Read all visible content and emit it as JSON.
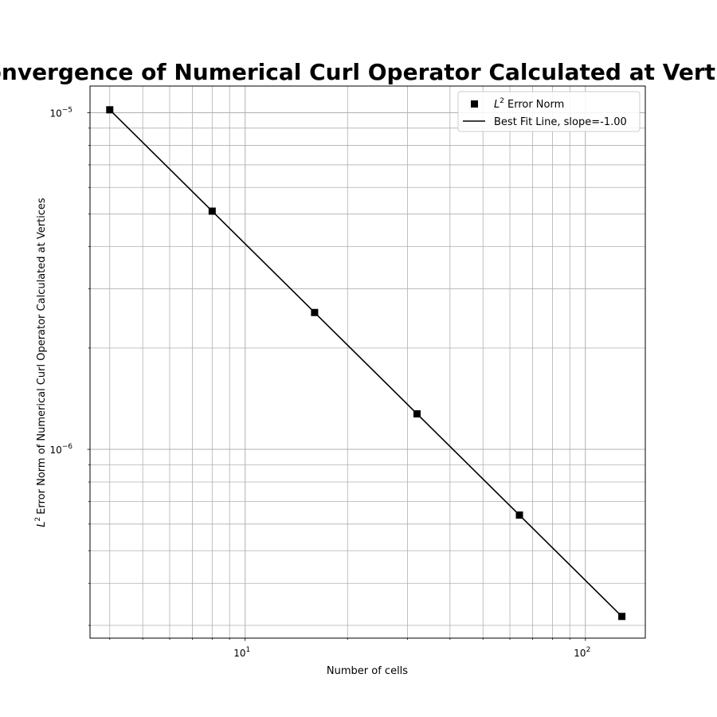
{
  "chart_data": {
    "type": "line",
    "title": "Convergence of Numerical Curl Operator Calculated at Vertices",
    "xlabel": "Number of cells",
    "ylabel": "Error Norm of Numerical Curl Operator Calculated at Vertices",
    "ylabel_math": "L",
    "ylabel_sup": "2",
    "xscale": "log",
    "yscale": "log",
    "xlim": [
      3.5,
      150
    ],
    "ylim": [
      2.75e-07,
      1.2e-05
    ],
    "grid": "major and minor",
    "legend_position": "top-right",
    "x_major_ticks": [
      {
        "value": 10,
        "base": "10",
        "exp": "1"
      },
      {
        "value": 100,
        "base": "10",
        "exp": "2"
      }
    ],
    "y_major_ticks": [
      {
        "value": 1e-06,
        "base": "10",
        "exp": "−6"
      },
      {
        "value": 1e-05,
        "base": "10",
        "exp": "−5"
      }
    ],
    "series": [
      {
        "name": "Error Norm",
        "name_math": "L",
        "name_sup": "2",
        "style": "markers",
        "marker": "square",
        "color": "#000000",
        "x": [
          4,
          8,
          16,
          32,
          64,
          128
        ],
        "y": [
          1.02e-05,
          5.1e-06,
          2.55e-06,
          1.275e-06,
          6.38e-07,
          3.19e-07
        ]
      },
      {
        "name": "Best Fit Line, slope=-1.00",
        "style": "line",
        "color": "#000000",
        "x": [
          4,
          8,
          16,
          32,
          64,
          128
        ],
        "y": [
          1.02e-05,
          5.1e-06,
          2.55e-06,
          1.275e-06,
          6.38e-07,
          3.19e-07
        ]
      }
    ]
  }
}
